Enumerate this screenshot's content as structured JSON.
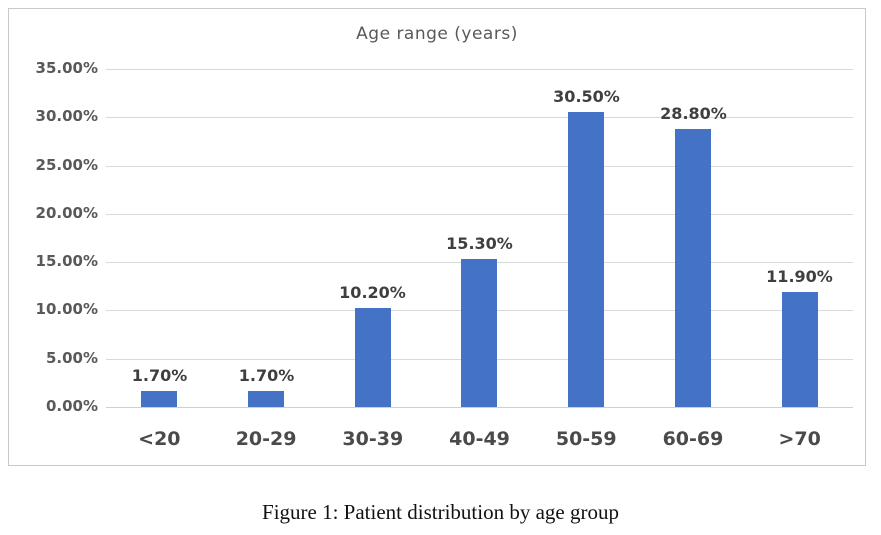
{
  "chart_data": {
    "type": "bar",
    "title": "Age range (years)",
    "categories": [
      "<20",
      "20-29",
      "30-39",
      "40-49",
      "50-59",
      "60-69",
      ">70"
    ],
    "values": [
      1.7,
      1.7,
      10.2,
      15.3,
      30.5,
      28.8,
      11.9
    ],
    "data_labels": [
      "1.70%",
      "1.70%",
      "10.20%",
      "15.30%",
      "30.50%",
      "28.80%",
      "11.90%"
    ],
    "y_ticks": [
      "35.00%",
      "30.00%",
      "25.00%",
      "20.00%",
      "15.00%",
      "10.00%",
      "5.00%",
      "0.00%"
    ],
    "ylim": [
      0,
      35
    ],
    "xlabel": "",
    "ylabel": "",
    "grid": true,
    "legend_position": "none",
    "bar_color": "#4472C4",
    "gridline_color": "#d9d9d9",
    "axis_text_color": "#595959",
    "data_label_color": "#3f3f3f"
  },
  "caption": "Figure 1: Patient distribution by age group"
}
